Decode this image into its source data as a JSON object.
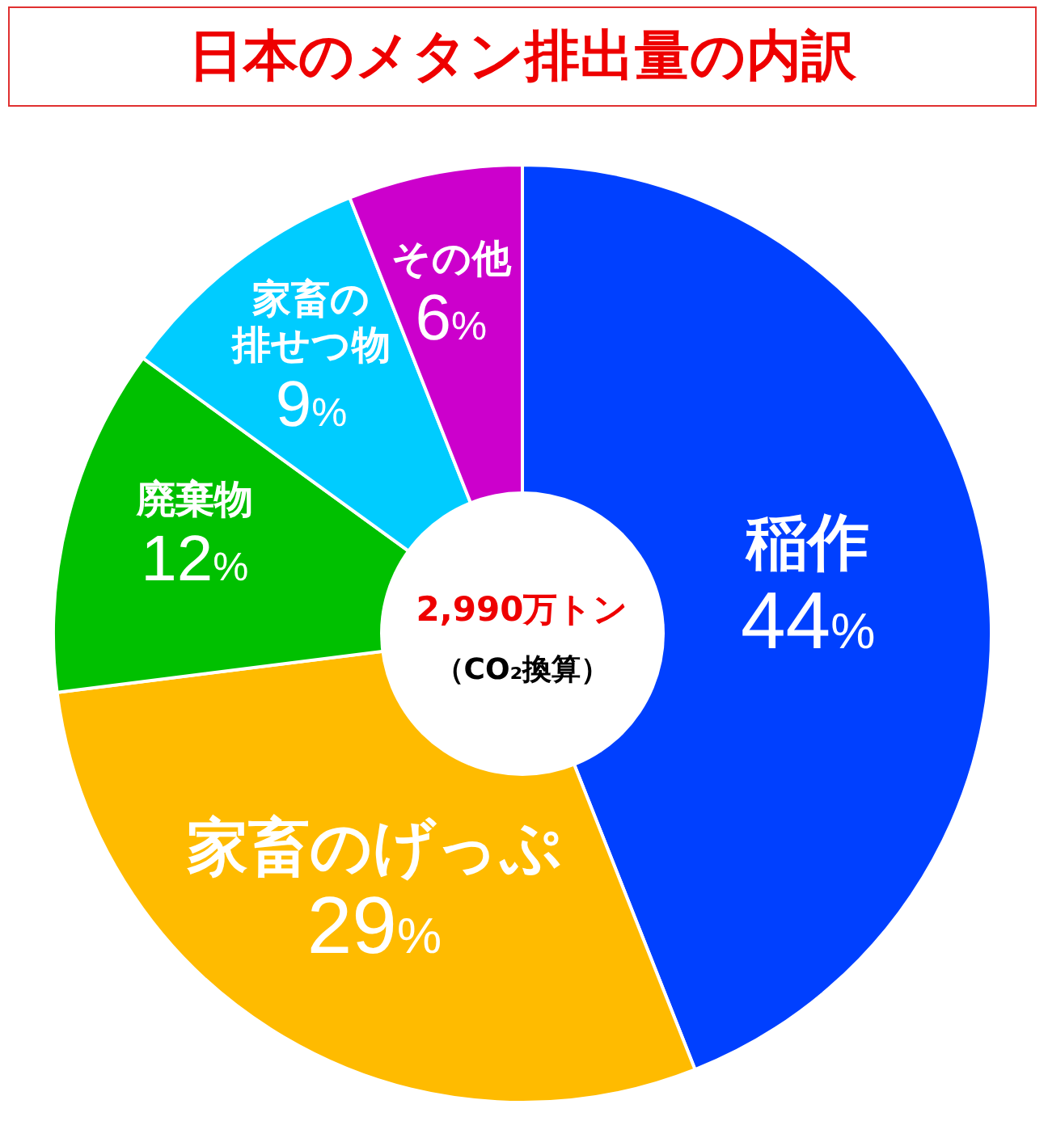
{
  "chart_data": {
    "type": "donut",
    "title": "日本のメタン排出量の内訳",
    "categories": [
      "稲作",
      "家畜のげっぷ",
      "廃棄物",
      "家畜の排せつ物",
      "その他"
    ],
    "values": [
      44,
      29,
      12,
      9,
      6
    ],
    "colors": [
      "#0040ff",
      "#ffbb00",
      "#00c000",
      "#00ccff",
      "#cc00cc"
    ],
    "value_labels": [
      "44%",
      "29%",
      "12%",
      "9%",
      "6%"
    ],
    "annotations": [
      "2,990万トン",
      "（CO₂換算）"
    ]
  }
}
